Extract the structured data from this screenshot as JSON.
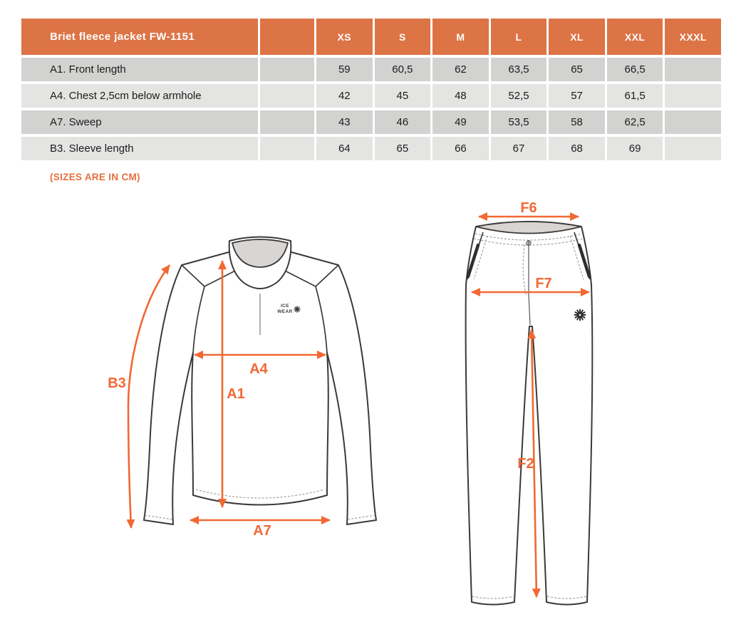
{
  "table": {
    "title": "Briet fleece jacket FW-1151",
    "sizes": [
      "XS",
      "S",
      "M",
      "L",
      "XL",
      "XXL",
      "XXXL"
    ],
    "rows": [
      {
        "label": "A1. Front length",
        "values": [
          "59",
          "60,5",
          "62",
          "63,5",
          "65",
          "66,5",
          ""
        ]
      },
      {
        "label": "A4. Chest 2,5cm below armhole",
        "values": [
          "42",
          "45",
          "48",
          "52,5",
          "57",
          "61,5",
          ""
        ]
      },
      {
        "label": "A7. Sweep",
        "values": [
          "43",
          "46",
          "49",
          "53,5",
          "58",
          "62,5",
          ""
        ]
      },
      {
        "label": "B3. Sleeve length",
        "values": [
          "64",
          "65",
          "66",
          "67",
          "68",
          "69",
          ""
        ]
      }
    ]
  },
  "note": "(SIZES ARE IN CM)",
  "jacket": {
    "logo": {
      "line1": "ICE",
      "line2": "WEAR"
    },
    "measurements": {
      "b3": "B3",
      "a4": "A4",
      "a1": "A1",
      "a7": "A7"
    }
  },
  "pants": {
    "measurements": {
      "f6": "F6",
      "f7": "F7",
      "f2": "F2"
    }
  },
  "colors": {
    "header_orange": "#DD7446",
    "arrow_orange": "#F26834",
    "row_shade_dark": "#D2D2D1",
    "row_shade_light": "#E4E4E3"
  }
}
